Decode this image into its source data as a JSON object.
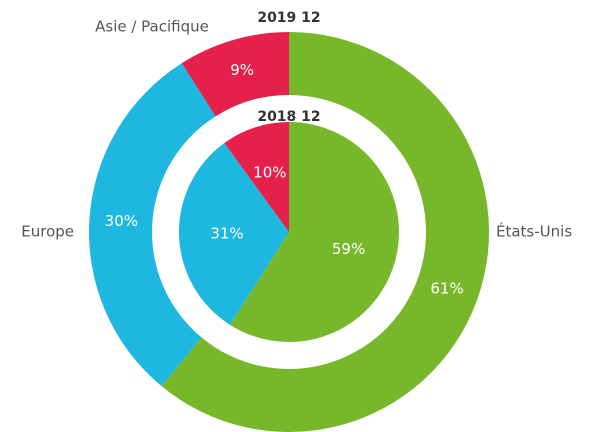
{
  "chart_data": {
    "type": "nested-pie",
    "categories": [
      "États-Unis",
      "Europe",
      "Asie / Pacifique"
    ],
    "colors": [
      "#77b82a",
      "#1eb7e0",
      "#e5204a"
    ],
    "series": [
      {
        "name": "2019 12",
        "values": [
          61,
          30,
          9
        ],
        "value_labels": [
          "61%",
          "30%",
          "9%"
        ]
      },
      {
        "name": "2018 12",
        "values": [
          59,
          31,
          10
        ],
        "value_labels": [
          "59%",
          "31%",
          "10%"
        ]
      }
    ]
  }
}
